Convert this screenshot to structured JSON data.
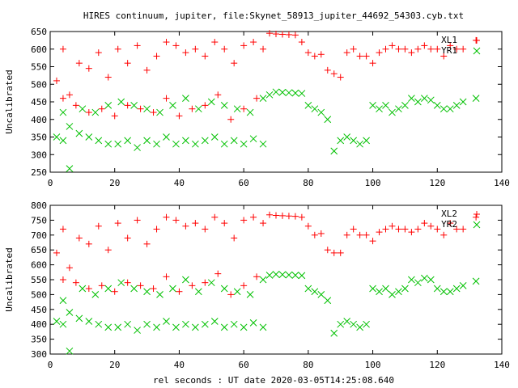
{
  "title": "HIRES continuum, jupiter, file:Skynet_58913_jupiter_44692_54303.cyb.txt",
  "xlabel": "rel seconds : UT date 2020-03-05T14:25:08.640",
  "colors": {
    "series_a": "#ff0000",
    "series_b": "#00c000",
    "axis": "#000000"
  },
  "chart_data": [
    {
      "type": "scatter",
      "ylabel": "Uncalibrated",
      "xlim": [
        0,
        140
      ],
      "ylim": [
        250,
        650
      ],
      "xticks": [
        0,
        20,
        40,
        60,
        80,
        100,
        120,
        140
      ],
      "yticks": [
        250,
        300,
        350,
        400,
        450,
        500,
        550,
        600,
        650
      ],
      "series": [
        {
          "name": "XL1",
          "marker": "plus",
          "color": "#ff0000",
          "x": [
            2,
            4,
            6,
            9,
            12,
            15,
            18,
            21,
            24,
            27,
            30,
            33,
            36,
            39,
            42,
            45,
            48,
            51,
            54,
            57,
            60,
            63,
            66,
            68,
            70,
            72,
            74,
            76,
            78,
            80,
            82,
            84,
            86,
            88,
            90,
            92,
            94,
            96,
            98,
            100,
            102,
            104,
            106,
            108,
            110,
            112,
            114,
            116,
            118,
            120,
            122,
            124,
            126,
            128,
            132,
            4,
            8,
            12,
            16,
            20,
            24,
            28,
            32,
            36,
            40,
            44,
            48,
            52,
            56,
            60,
            64
          ],
          "y": [
            510,
            600,
            470,
            560,
            545,
            590,
            520,
            600,
            560,
            610,
            540,
            580,
            620,
            610,
            590,
            600,
            580,
            620,
            600,
            560,
            610,
            620,
            600,
            645,
            643,
            642,
            641,
            640,
            620,
            590,
            580,
            585,
            540,
            530,
            520,
            590,
            600,
            580,
            580,
            560,
            590,
            600,
            610,
            600,
            600,
            590,
            600,
            610,
            600,
            600,
            580,
            610,
            600,
            600,
            625,
            460,
            440,
            420,
            430,
            410,
            440,
            430,
            420,
            460,
            410,
            430,
            440,
            470,
            400,
            430,
            460
          ]
        },
        {
          "name": "YR1",
          "marker": "cross",
          "color": "#00c000",
          "x": [
            2,
            4,
            6,
            9,
            12,
            15,
            18,
            21,
            24,
            27,
            30,
            33,
            36,
            39,
            42,
            45,
            48,
            51,
            54,
            57,
            60,
            63,
            66,
            68,
            70,
            72,
            74,
            76,
            78,
            80,
            82,
            84,
            86,
            88,
            90,
            92,
            94,
            96,
            98,
            100,
            102,
            104,
            106,
            108,
            110,
            112,
            114,
            116,
            118,
            120,
            122,
            124,
            126,
            128,
            132,
            4,
            6,
            10,
            14,
            18,
            22,
            26,
            30,
            34,
            38,
            42,
            46,
            50,
            54,
            58,
            62,
            66
          ],
          "y": [
            350,
            340,
            380,
            360,
            350,
            340,
            330,
            330,
            340,
            320,
            340,
            330,
            350,
            330,
            340,
            330,
            340,
            350,
            330,
            340,
            330,
            345,
            330,
            470,
            478,
            477,
            476,
            475,
            474,
            440,
            430,
            420,
            400,
            310,
            340,
            350,
            340,
            330,
            340,
            440,
            430,
            440,
            420,
            430,
            440,
            460,
            450,
            460,
            455,
            440,
            430,
            430,
            440,
            450,
            460,
            420,
            260,
            430,
            420,
            440,
            450,
            440,
            430,
            420,
            440,
            460,
            430,
            450,
            440,
            430,
            420,
            460
          ]
        }
      ]
    },
    {
      "type": "scatter",
      "ylabel": "Uncalibrated",
      "xlim": [
        0,
        140
      ],
      "ylim": [
        300,
        800
      ],
      "xticks": [
        0,
        20,
        40,
        60,
        80,
        100,
        120,
        140
      ],
      "yticks": [
        300,
        350,
        400,
        450,
        500,
        550,
        600,
        650,
        700,
        750,
        800
      ],
      "series": [
        {
          "name": "XL2",
          "marker": "plus",
          "color": "#ff0000",
          "x": [
            2,
            4,
            6,
            9,
            12,
            15,
            18,
            21,
            24,
            27,
            30,
            33,
            36,
            39,
            42,
            45,
            48,
            51,
            54,
            57,
            60,
            63,
            66,
            68,
            70,
            72,
            74,
            76,
            78,
            80,
            82,
            84,
            86,
            88,
            90,
            92,
            94,
            96,
            98,
            100,
            102,
            104,
            106,
            108,
            110,
            112,
            114,
            116,
            118,
            120,
            122,
            124,
            126,
            128,
            132,
            4,
            8,
            12,
            16,
            20,
            24,
            28,
            32,
            36,
            40,
            44,
            48,
            52,
            56,
            60,
            64
          ],
          "y": [
            640,
            720,
            590,
            690,
            670,
            730,
            650,
            740,
            690,
            750,
            670,
            720,
            760,
            750,
            730,
            740,
            720,
            760,
            740,
            690,
            750,
            760,
            740,
            768,
            766,
            765,
            764,
            763,
            760,
            730,
            700,
            705,
            650,
            640,
            640,
            700,
            720,
            700,
            700,
            680,
            710,
            720,
            730,
            720,
            720,
            710,
            720,
            740,
            730,
            720,
            700,
            740,
            720,
            720,
            760,
            550,
            540,
            520,
            530,
            510,
            540,
            530,
            520,
            560,
            510,
            530,
            540,
            570,
            500,
            530,
            560
          ]
        },
        {
          "name": "YR2",
          "marker": "cross",
          "color": "#00c000",
          "x": [
            2,
            4,
            6,
            9,
            12,
            15,
            18,
            21,
            24,
            27,
            30,
            33,
            36,
            39,
            42,
            45,
            48,
            51,
            54,
            57,
            60,
            63,
            66,
            68,
            70,
            72,
            74,
            76,
            78,
            80,
            82,
            84,
            86,
            88,
            90,
            92,
            94,
            96,
            98,
            100,
            102,
            104,
            106,
            108,
            110,
            112,
            114,
            116,
            118,
            120,
            122,
            124,
            126,
            128,
            132,
            4,
            6,
            10,
            14,
            18,
            22,
            26,
            30,
            34,
            38,
            42,
            46,
            50,
            54,
            58,
            62,
            66
          ],
          "y": [
            410,
            400,
            440,
            420,
            410,
            400,
            390,
            390,
            400,
            380,
            400,
            390,
            410,
            390,
            400,
            390,
            400,
            410,
            390,
            400,
            390,
            405,
            390,
            565,
            568,
            567,
            566,
            565,
            564,
            520,
            510,
            500,
            480,
            370,
            400,
            410,
            400,
            390,
            400,
            520,
            510,
            520,
            500,
            510,
            520,
            550,
            540,
            555,
            550,
            520,
            510,
            510,
            520,
            530,
            545,
            480,
            310,
            520,
            500,
            520,
            540,
            520,
            510,
            500,
            520,
            550,
            510,
            540,
            520,
            510,
            500,
            550
          ]
        }
      ]
    }
  ]
}
